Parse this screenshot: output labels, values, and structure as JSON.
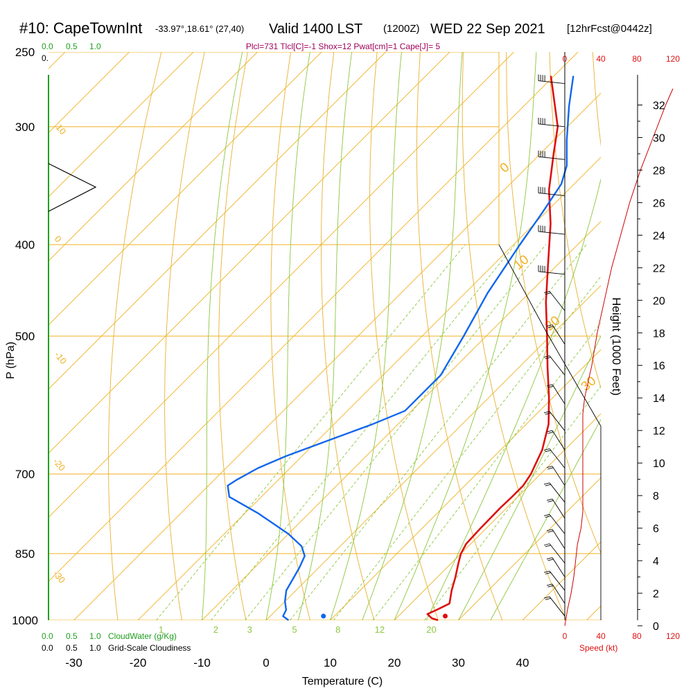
{
  "header": {
    "station": "#10: CapeTownInt",
    "coords": "-33.97°,18.61° (27,40)",
    "valid": "Valid 1400 LST",
    "zulu": "(1200Z)",
    "date": "WED 22 Sep 2021",
    "forecast": "[12hrFcst@0442z]",
    "indices": "Plcl=731 Tlcl[C]=-1 Shox=12 Pwat[cm]=1 Cape[J]= 5"
  },
  "colors": {
    "temperature": "#dd1111",
    "dewpoint": "#1166ee",
    "isobar": "#f0b020",
    "isotherm": "#f0b020",
    "dry_adiabat": "#e8b030",
    "moist_adiabat": "#8cc63e",
    "mixing_ratio": "#8cc63e",
    "cloud": "#20a020",
    "wind_profile": "#cc0000",
    "indices_text": "#a0005a"
  },
  "chart_data": {
    "type": "line",
    "title": "Skew-T log-P sounding, Cape Town Int, WED 22 Sep 2021",
    "xlabel": "Temperature (C)",
    "ylabel": "P (hPa)",
    "xlim": [
      -34,
      36
    ],
    "ylim": [
      1000,
      250
    ],
    "x_ticks": [
      -30,
      -20,
      -10,
      0,
      10,
      20,
      30,
      40
    ],
    "x_tick_labels": [
      "-30",
      "-20",
      "-10",
      "0",
      "10",
      "20",
      "30",
      "40"
    ],
    "p_ticks": [
      250,
      300,
      400,
      500,
      700,
      850,
      1000
    ],
    "p_tick_labels": [
      "250",
      "300",
      "400",
      "500",
      "700",
      "850",
      "1000"
    ],
    "series": [
      {
        "name": "Temperature",
        "pressure": [
          1000,
          995,
          985,
          975,
          960,
          930,
          900,
          870,
          850,
          830,
          800,
          760,
          740,
          720,
          700,
          660,
          620,
          580,
          540,
          500,
          460,
          420,
          380,
          350,
          320,
          300,
          280,
          265
        ],
        "values": [
          26.8,
          25.5,
          24.2,
          25.0,
          26.0,
          24.3,
          22.8,
          21.1,
          20.0,
          19.3,
          19.1,
          19.0,
          19.1,
          19.1,
          18.5,
          16.5,
          13.5,
          9.3,
          4.5,
          -0.5,
          -6.0,
          -11.5,
          -17.5,
          -23.0,
          -28.0,
          -31.5,
          -36.5,
          -40.5
        ]
      },
      {
        "name": "Dewpoint",
        "pressure": [
          1000,
          990,
          975,
          955,
          930,
          880,
          855,
          835,
          810,
          770,
          740,
          720,
          710,
          690,
          670,
          640,
          620,
          600,
          550,
          500,
          450,
          400,
          370,
          345,
          330,
          310,
          285,
          265
        ],
        "values": [
          3.5,
          2.0,
          1.5,
          0.0,
          -1.5,
          -3.0,
          -4.0,
          -6.0,
          -10.0,
          -18.0,
          -25.0,
          -27.0,
          -26.5,
          -25.0,
          -22.5,
          -17.5,
          -14.0,
          -11.0,
          -11.0,
          -13.5,
          -16.5,
          -19.0,
          -20.5,
          -22.0,
          -24.0,
          -28.0,
          -33.0,
          -37.0
        ]
      }
    ],
    "surface": {
      "temperature_marker_c": 27.3,
      "dewpoint_marker_c": 8.3
    },
    "mixing_ratio_labels": [
      "1",
      "2",
      "3",
      "5",
      "8",
      "12",
      "20"
    ],
    "isotherm_labels": [
      "10",
      "0",
      "-10",
      "-20",
      "-30"
    ],
    "theta_e_labels": [
      "0",
      "10",
      "20",
      "30"
    ],
    "height_axis": {
      "label": "Height (1000 Feet)",
      "ticks": [
        "0",
        "2",
        "4",
        "6",
        "8",
        "10",
        "12",
        "14",
        "16",
        "18",
        "20",
        "22",
        "24",
        "26",
        "28",
        "30",
        "32"
      ]
    },
    "speed_axis": {
      "label": "Speed (kt)",
      "ticks": [
        "0",
        "40",
        "80",
        "120"
      ]
    },
    "wind_speed_profile": {
      "height_kft": [
        0,
        1,
        2,
        3,
        4,
        5,
        6,
        7,
        8,
        9,
        10,
        11,
        12,
        13,
        14,
        16,
        18,
        20,
        22,
        24,
        26,
        28,
        30,
        32,
        33
      ],
      "speed_kt": [
        0,
        3,
        7,
        10,
        12,
        14,
        18,
        20,
        20,
        20,
        20,
        20,
        20,
        20,
        22,
        30,
        36,
        44,
        52,
        62,
        72,
        84,
        98,
        112,
        120
      ]
    },
    "cloud_scale_top": [
      "0.0",
      "0.5",
      "1.0"
    ],
    "cloud_scale_bottom": [
      "0.0",
      "0.5",
      "1.0"
    ],
    "cloudwater_label": "CloudWater (g/Kg)",
    "cloudiness_label": "Grid-Scale Cloudiness"
  }
}
